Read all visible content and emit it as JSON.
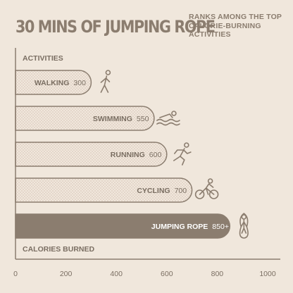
{
  "title": "30 MINS OF JUMPING ROPE",
  "subtitle": "RANKS AMONG THE TOP CALORIE-BURNING ACTIVITIES",
  "colors": {
    "background": "#f0e7dc",
    "bar_outline": "#8b7d6f",
    "bar_dots": "#c9b3a3",
    "highlight_bar": "#8b7d6f",
    "text": "#7a6e62"
  },
  "chart_data": {
    "type": "bar",
    "orientation": "horizontal",
    "title": "30 MINS OF JUMPING ROPE",
    "subtitle": "RANKS AMONG THE TOP CALORIE-BURNING ACTIVITIES",
    "ylabel": "ACTIVITIES",
    "xlabel": "CALORIES BURNED",
    "xlim": [
      0,
      1000
    ],
    "xticks": [
      0,
      200,
      400,
      600,
      800,
      1000
    ],
    "grid": false,
    "categories": [
      "WALKING",
      "SWIMMING",
      "RUNNING",
      "CYCLING",
      "JUMPING ROPE"
    ],
    "values": [
      300,
      550,
      600,
      700,
      850
    ],
    "value_labels": [
      "300",
      "550",
      "600",
      "700",
      "850+"
    ],
    "icons": [
      "walking-icon",
      "swimming-icon",
      "running-icon",
      "cycling-icon",
      "jump-rope-icon"
    ],
    "highlight": "JUMPING ROPE"
  }
}
